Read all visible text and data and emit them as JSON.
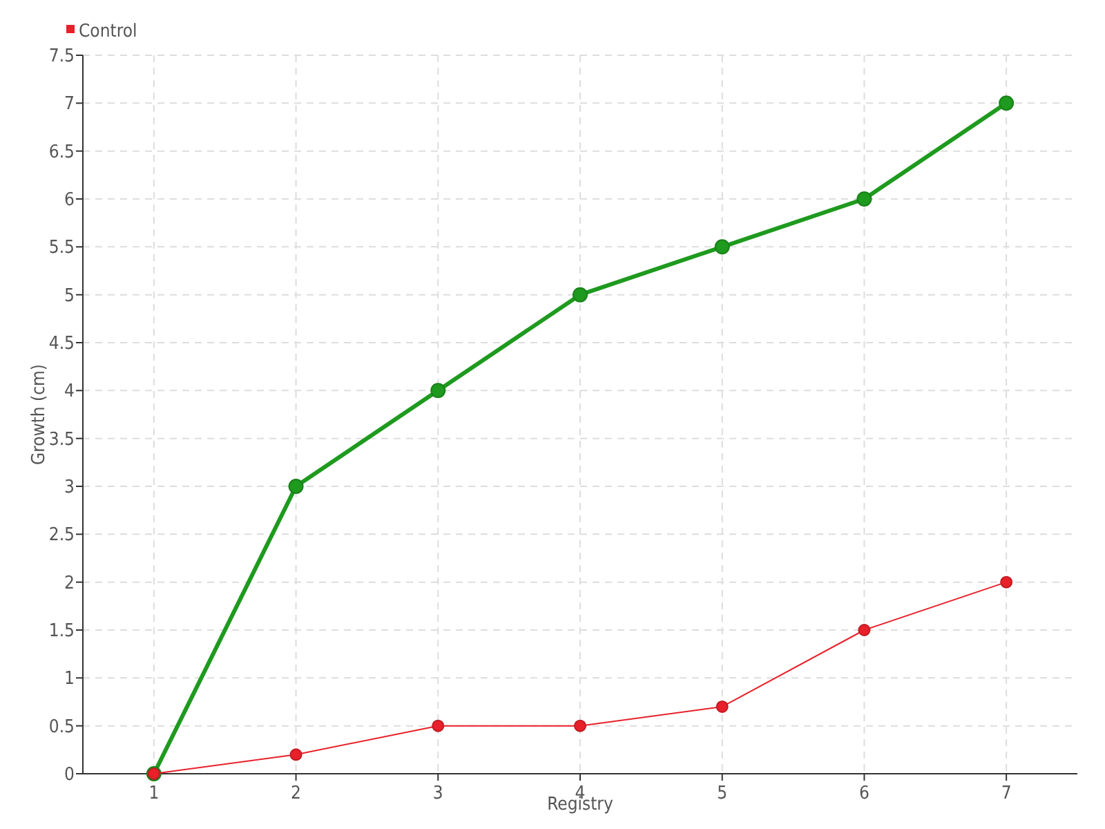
{
  "chart_data": {
    "type": "line",
    "xlabel": "Registry",
    "ylabel": "Growth (cm)",
    "x": [
      1,
      2,
      3,
      4,
      5,
      6,
      7
    ],
    "xlim": [
      0.5,
      7.5
    ],
    "xticks": [
      1,
      2,
      3,
      4,
      5,
      6,
      7
    ],
    "ylim": [
      0,
      7.5
    ],
    "yticks": [
      0,
      0.5,
      1,
      1.5,
      2,
      2.5,
      3,
      3.5,
      4,
      4.5,
      5,
      5.5,
      6,
      6.5,
      7,
      7.5
    ],
    "grid": true,
    "legend": "top left",
    "marker": "circle",
    "series": [
      {
        "color": "#1e9a1e",
        "values": [
          0,
          3,
          4,
          5,
          5.5,
          6,
          7
        ]
      },
      {
        "name": "Control",
        "color": "#e8202a",
        "values": [
          0,
          0.2,
          0.5,
          0.5,
          0.7,
          1.5,
          2
        ]
      }
    ]
  }
}
